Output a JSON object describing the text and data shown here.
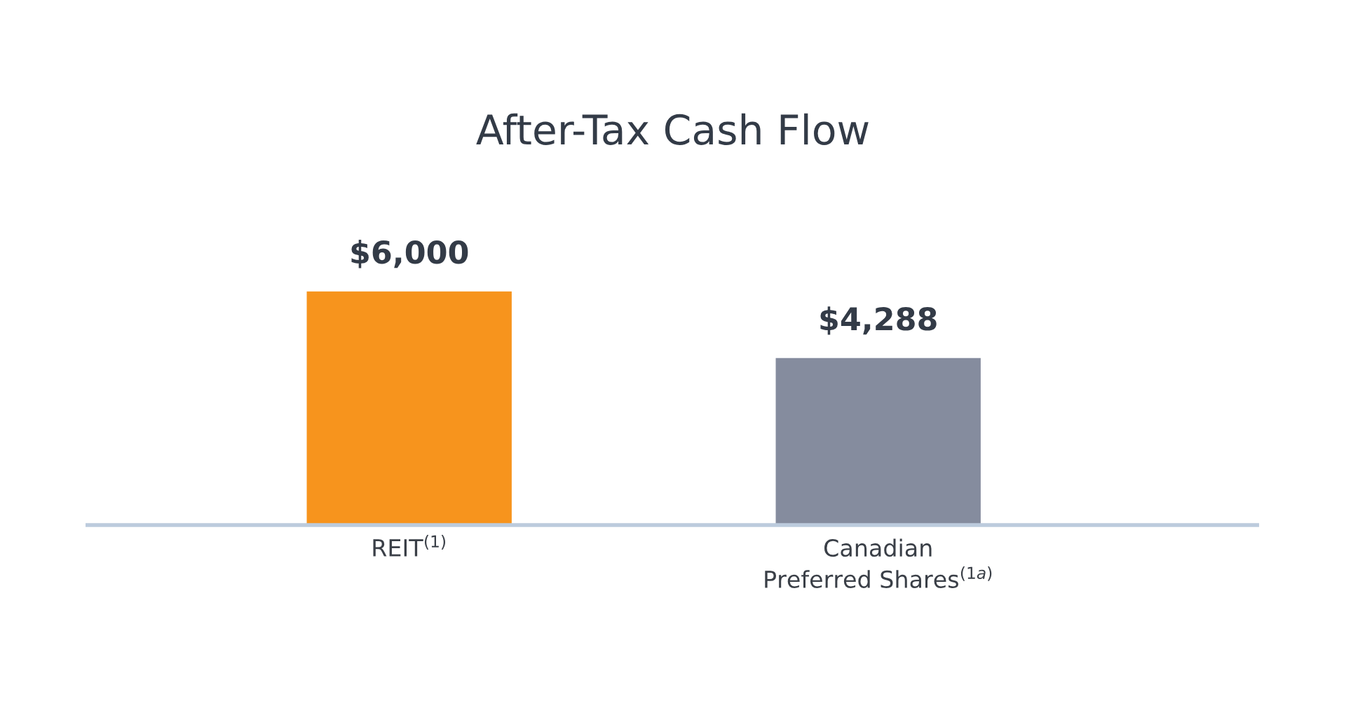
{
  "chart_data": {
    "type": "bar",
    "title": "After-Tax Cash Flow",
    "categories": [
      "REIT$^{(1)}$",
      "Canadian\nPreferred Shares$^{(1a)}$"
    ],
    "values": [
      6000,
      4288
    ],
    "colors": [
      "#f7941d",
      "#858c9e"
    ],
    "value_labels": [
      "$6,000",
      "$4,288"
    ],
    "grid": false,
    "legend": false
  }
}
